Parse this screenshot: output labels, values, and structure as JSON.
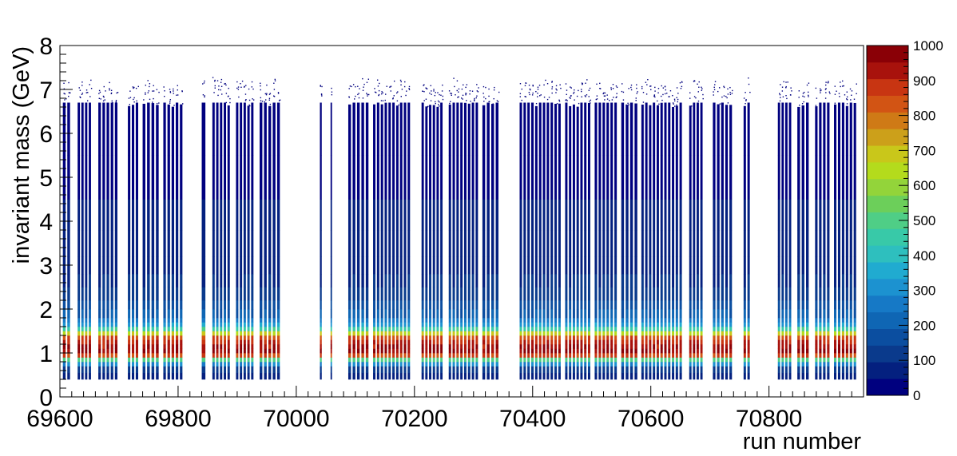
{
  "chart_data": {
    "type": "heatmap",
    "title": "",
    "xlabel": "run number",
    "ylabel": "invariant mass (GeV)",
    "xlim": [
      69600,
      70960
    ],
    "ylim": [
      0,
      8
    ],
    "x_ticks": [
      "69600",
      "69800",
      "70000",
      "70200",
      "70400",
      "70600",
      "70800"
    ],
    "y_ticks": [
      "0",
      "1",
      "2",
      "3",
      "4",
      "5",
      "6",
      "7",
      "8"
    ],
    "z_range": [
      0,
      1000
    ],
    "colorbar_ticks": [
      "0",
      "100",
      "200",
      "300",
      "400",
      "500",
      "600",
      "700",
      "800",
      "900",
      "1000"
    ],
    "palette": [
      "#00007f",
      "#04207f",
      "#0a3a8c",
      "#0b4ea0",
      "#0f66b4",
      "#1679c6",
      "#1c92d0",
      "#20abd0",
      "#2ebfbe",
      "#38c9a8",
      "#4fce86",
      "#6ccf5a",
      "#93d43a",
      "#b4db1c",
      "#c9c71a",
      "#cca01a",
      "#cf7a16",
      "#d25414",
      "#c83512",
      "#a8120c",
      "#8a0006"
    ],
    "mass_profile": {
      "mass_edges": [
        0.4,
        0.55,
        0.7,
        0.8,
        0.9,
        1.0,
        1.1,
        1.2,
        1.3,
        1.4,
        1.5,
        1.6,
        1.7,
        1.8,
        2.0,
        2.2,
        2.5,
        2.8,
        3.2,
        3.8,
        4.5,
        5.5,
        6.7
      ],
      "counts": [
        60,
        120,
        300,
        520,
        900,
        1000,
        980,
        950,
        880,
        700,
        480,
        340,
        260,
        200,
        160,
        130,
        100,
        85,
        70,
        55,
        40,
        30
      ]
    },
    "run_groups": [
      {
        "start": 69605,
        "end": 69620
      },
      {
        "start": 69630,
        "end": 69655
      },
      {
        "start": 69665,
        "end": 69700
      },
      {
        "start": 69715,
        "end": 69735
      },
      {
        "start": 69740,
        "end": 69770
      },
      {
        "start": 69775,
        "end": 69810
      },
      {
        "start": 69840,
        "end": 69850
      },
      {
        "start": 69858,
        "end": 69890
      },
      {
        "start": 69898,
        "end": 69930
      },
      {
        "start": 69938,
        "end": 69975
      },
      {
        "start": 70040,
        "end": 70045
      },
      {
        "start": 70058,
        "end": 70062
      },
      {
        "start": 70088,
        "end": 70125
      },
      {
        "start": 70130,
        "end": 70195
      },
      {
        "start": 70212,
        "end": 70250
      },
      {
        "start": 70258,
        "end": 70310
      },
      {
        "start": 70315,
        "end": 70345
      },
      {
        "start": 70378,
        "end": 70450
      },
      {
        "start": 70455,
        "end": 70500
      },
      {
        "start": 70505,
        "end": 70545
      },
      {
        "start": 70550,
        "end": 70580
      },
      {
        "start": 70584,
        "end": 70655
      },
      {
        "start": 70665,
        "end": 70690
      },
      {
        "start": 70705,
        "end": 70740
      },
      {
        "start": 70757,
        "end": 70770
      },
      {
        "start": 70815,
        "end": 70840
      },
      {
        "start": 70848,
        "end": 70870
      },
      {
        "start": 70878,
        "end": 70905
      },
      {
        "start": 70910,
        "end": 70950
      }
    ]
  }
}
